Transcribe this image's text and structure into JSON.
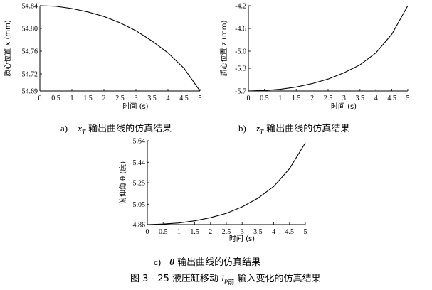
{
  "chart_data": [
    {
      "type": "line",
      "caption_letter": "a)",
      "caption_symbol": "x",
      "caption_symbol_sub": "T",
      "caption_text": " 输出曲线的仿真结果",
      "xlabel": "时间 (s)",
      "ylabel": "质心位置 x (mm)",
      "xlim": [
        0,
        5
      ],
      "ylim": [
        54.69,
        54.84
      ],
      "x_ticks": [
        "0",
        "0.5",
        "1",
        "1.5",
        "2",
        "2.5",
        "3",
        "3.5",
        "4",
        "4.5",
        "5"
      ],
      "y_ticks": [
        "54.69",
        "54.72",
        "54.76",
        "54.80",
        "54.84"
      ],
      "y_tick_values": [
        54.69,
        54.72,
        54.76,
        54.8,
        54.84
      ],
      "series": [
        {
          "x": [
            0,
            0.5,
            1,
            1.5,
            2,
            2.5,
            3,
            3.5,
            4,
            4.5,
            5
          ],
          "y": [
            54.84,
            54.839,
            54.835,
            54.829,
            54.821,
            54.81,
            54.796,
            54.778,
            54.757,
            54.73,
            54.69
          ]
        }
      ]
    },
    {
      "type": "line",
      "caption_letter": "b)",
      "caption_symbol": "z",
      "caption_symbol_sub": "T",
      "caption_text": " 输出曲线的仿真结果",
      "xlabel": "时间 (s)",
      "ylabel": "质心位置 z (mm)",
      "xlim": [
        0,
        5
      ],
      "ylim": [
        -5.7,
        -4.2
      ],
      "x_ticks": [
        "0",
        "0.5",
        "1",
        "1.5",
        "2",
        "2.5",
        "3",
        "3.5",
        "4",
        "4.5",
        "5"
      ],
      "y_ticks": [
        "-5.7",
        "-5.3",
        "-5.0",
        "-4.6",
        "-4.2"
      ],
      "y_tick_values": [
        -5.7,
        -5.3,
        -5.0,
        -4.6,
        -4.2
      ],
      "series": [
        {
          "x": [
            0,
            0.5,
            1,
            1.5,
            2,
            2.5,
            3,
            3.5,
            4,
            4.5,
            5
          ],
          "y": [
            -5.7,
            -5.69,
            -5.67,
            -5.63,
            -5.57,
            -5.49,
            -5.38,
            -5.24,
            -5.03,
            -4.7,
            -4.2
          ]
        }
      ]
    },
    {
      "type": "line",
      "caption_letter": "c)",
      "caption_symbol": "θ",
      "caption_symbol_sub": "",
      "caption_text": " 输出曲线的仿真结果",
      "xlabel": "时间 (s)",
      "ylabel": "俯仰角 θ (度)",
      "xlim": [
        0,
        5
      ],
      "ylim": [
        4.86,
        5.64
      ],
      "x_ticks": [
        "0",
        "0.5",
        "1",
        "1.5",
        "2",
        "2.5",
        "3",
        "3.5",
        "4",
        "4.5",
        "5"
      ],
      "y_ticks": [
        "4.86",
        "5.05",
        "5.25",
        "5.44",
        "5.64"
      ],
      "y_tick_values": [
        4.86,
        5.05,
        5.25,
        5.44,
        5.64
      ],
      "series": [
        {
          "x": [
            0,
            0.5,
            1,
            1.5,
            2,
            2.5,
            3,
            3.5,
            4,
            4.5,
            5
          ],
          "y": [
            4.86,
            4.865,
            4.875,
            4.895,
            4.925,
            4.965,
            5.025,
            5.105,
            5.215,
            5.38,
            5.62
          ]
        }
      ]
    }
  ],
  "figure_caption": {
    "prefix": "图 3 - 25  液压缸移动 ",
    "symbol": "l",
    "symbol_sub": "P",
    "symbol_sub2": "前",
    "suffix": " 输入变化的仿真结果"
  }
}
